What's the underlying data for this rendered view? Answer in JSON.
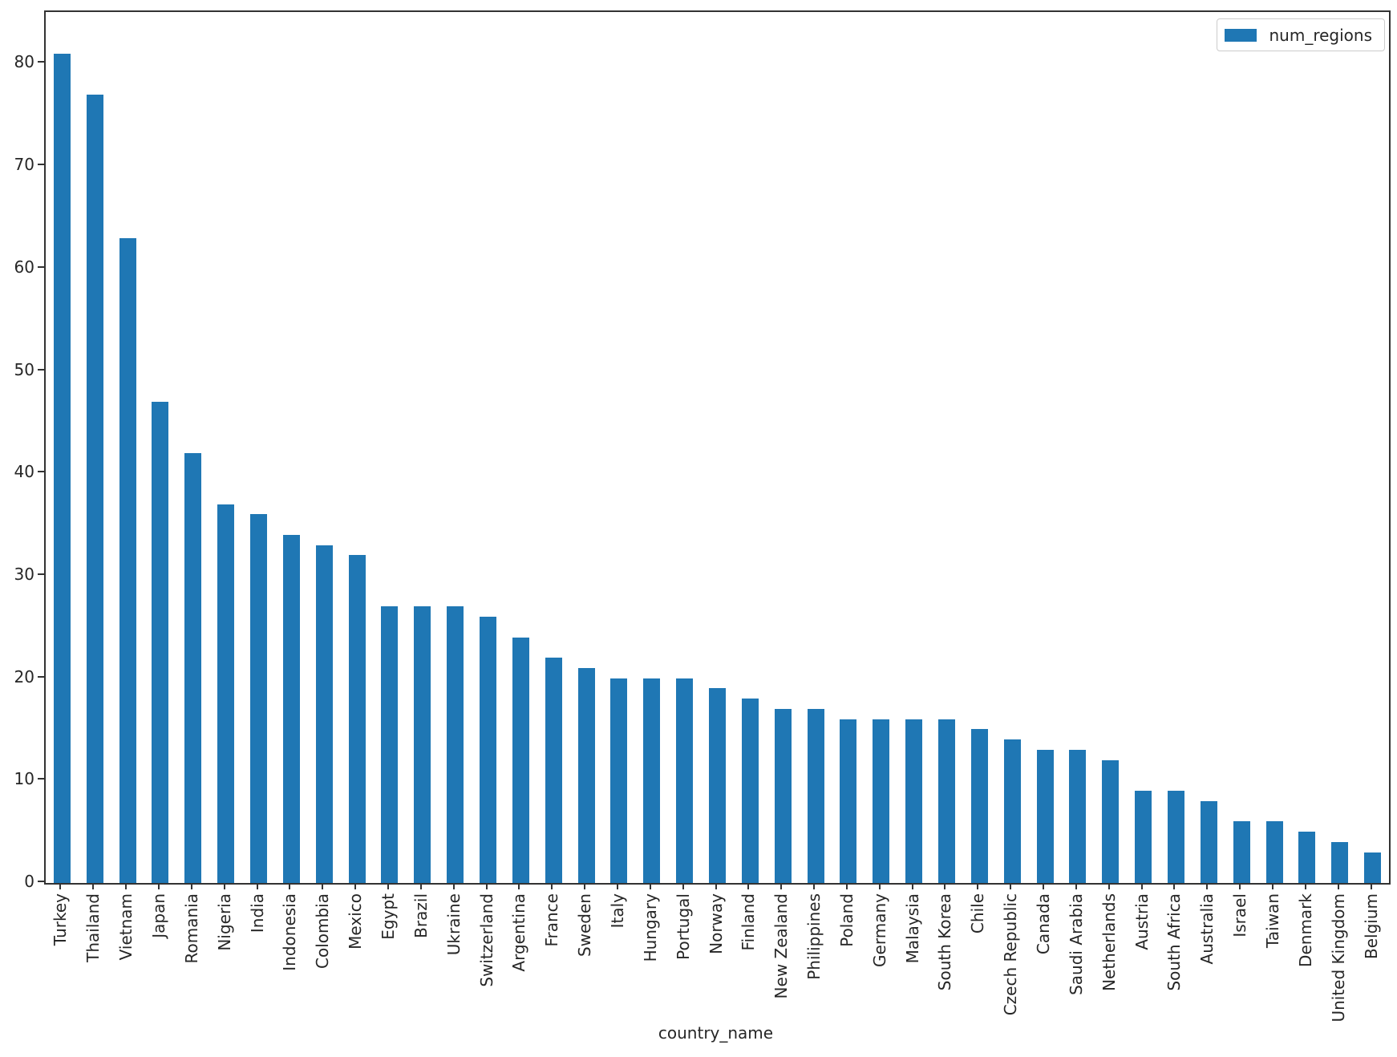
{
  "chart_data": {
    "type": "bar",
    "title": "",
    "xlabel": "country_name",
    "ylabel": "",
    "legend": [
      "num_regions"
    ],
    "legend_position": "upper right",
    "grid": false,
    "bar_color": "#1f77b4",
    "text_color": "#262626",
    "spine_color": "#333333",
    "ylim": [
      0,
      85.05
    ],
    "yticks": [
      0,
      10,
      20,
      30,
      40,
      50,
      60,
      70,
      80
    ],
    "categories": [
      "Turkey",
      "Thailand",
      "Vietnam",
      "Japan",
      "Romania",
      "Nigeria",
      "India",
      "Indonesia",
      "Colombia",
      "Mexico",
      "Egypt",
      "Brazil",
      "Ukraine",
      "Switzerland",
      "Argentina",
      "France",
      "Sweden",
      "Italy",
      "Hungary",
      "Portugal",
      "Norway",
      "Finland",
      "New Zealand",
      "Philippines",
      "Poland",
      "Germany",
      "Malaysia",
      "South Korea",
      "Chile",
      "Czech Republic",
      "Canada",
      "Saudi Arabia",
      "Netherlands",
      "Austria",
      "South Africa",
      "Australia",
      "Israel",
      "Taiwan",
      "Denmark",
      "United Kingdom",
      "Belgium"
    ],
    "values": [
      81,
      77,
      63,
      47,
      42,
      37,
      36,
      34,
      33,
      32,
      27,
      27,
      27,
      26,
      24,
      22,
      21,
      20,
      20,
      20,
      19,
      18,
      17,
      17,
      16,
      16,
      16,
      16,
      15,
      14,
      13,
      13,
      12,
      9,
      9,
      8,
      6,
      6,
      5,
      4,
      3
    ]
  }
}
